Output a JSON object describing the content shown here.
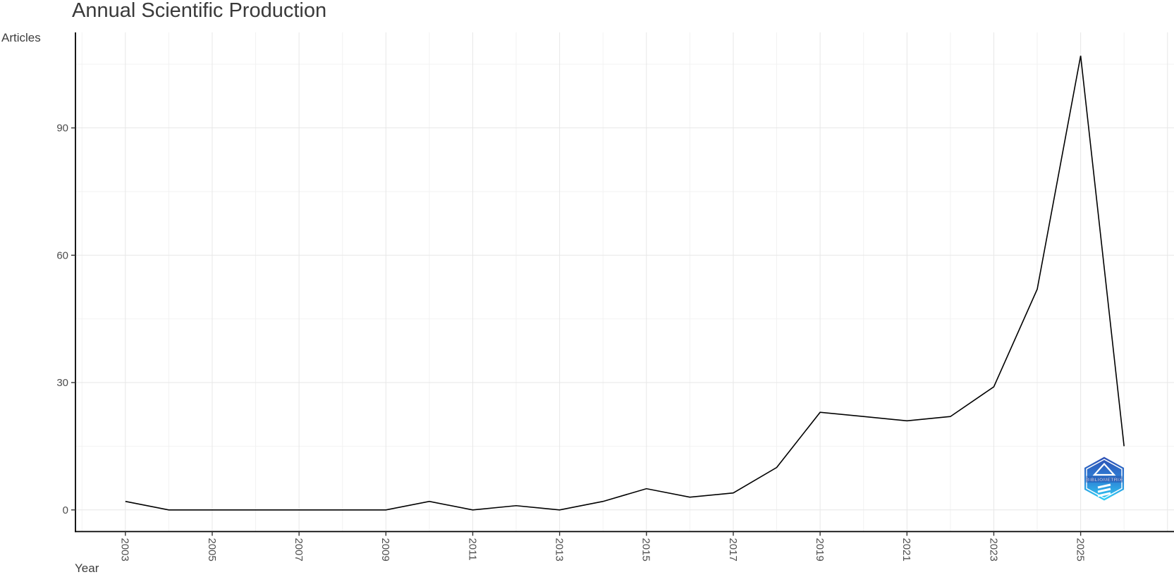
{
  "page": {
    "background": "#ffffff"
  },
  "chart_data": {
    "type": "line",
    "title": "Annual Scientific Production",
    "xlabel": "Year",
    "ylabel": "Articles",
    "x": [
      2003,
      2004,
      2005,
      2006,
      2007,
      2008,
      2009,
      2010,
      2011,
      2012,
      2013,
      2014,
      2015,
      2016,
      2017,
      2018,
      2019,
      2020,
      2021,
      2022,
      2023,
      2024,
      2025,
      2026
    ],
    "values": [
      2,
      0,
      0,
      0,
      0,
      0,
      0,
      2,
      0,
      1,
      0,
      2,
      5,
      3,
      4,
      10,
      23,
      22,
      21,
      22,
      29,
      52,
      107,
      15
    ],
    "x_tick_labels": [
      "2003",
      "2005",
      "2007",
      "2009",
      "2011",
      "2013",
      "2015",
      "2017",
      "2019",
      "2021",
      "2023",
      "2025"
    ],
    "y_tick_labels": [
      "0",
      "30",
      "60",
      "90"
    ],
    "xlim": [
      2001.85,
      2027.15
    ],
    "ylim": [
      -5.1,
      112.5
    ],
    "grid": true,
    "legend": "none",
    "line_color": "#000000",
    "axis_color": "#000000",
    "grid_major_color": "#e7e7e7",
    "grid_minor_color": "#f2f2f2",
    "tick_label_color": "#4c4c4c",
    "title_color": "#3a3a3a"
  },
  "logo": {
    "text": "BIBLIOMETRIX",
    "gradient_top": "#2e4fb5",
    "gradient_mid": "#2f86d8",
    "gradient_bottom": "#2fd0f5",
    "text_outline": "#1e3f9e"
  }
}
